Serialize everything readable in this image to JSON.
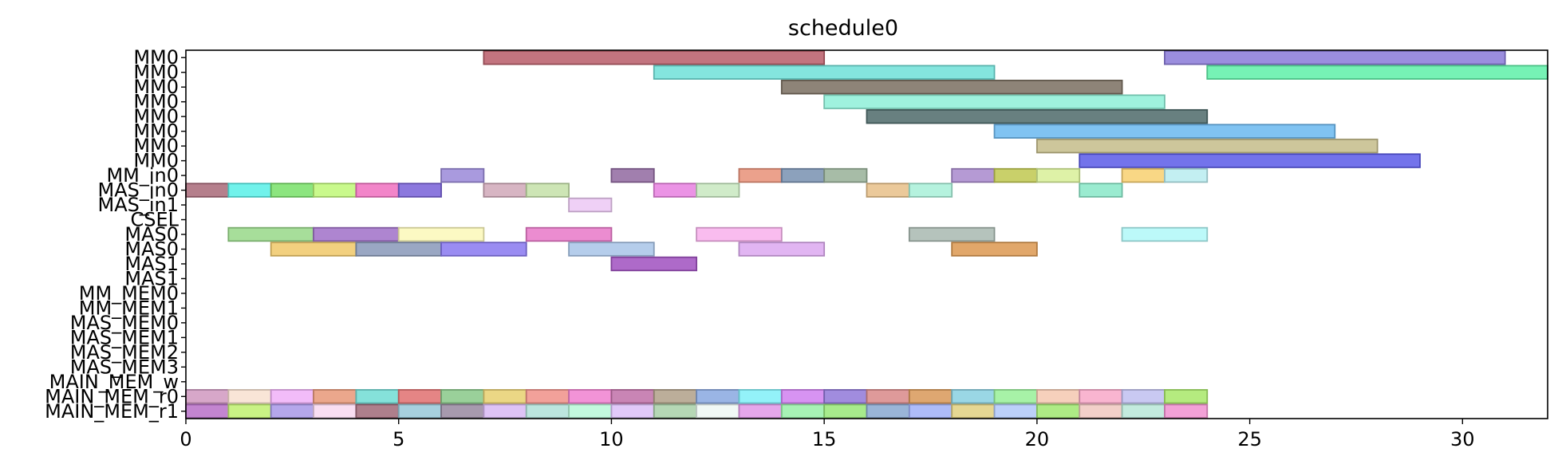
{
  "chart_data": {
    "type": "gantt",
    "title": "schedule0",
    "xlabel": "",
    "ylabel": "",
    "xlim": [
      0,
      32
    ],
    "xticks": [
      0,
      5,
      10,
      15,
      20,
      25,
      30
    ],
    "rows": [
      "MM0",
      "MM0",
      "MM0",
      "MM0",
      "MM0",
      "MM0",
      "MM0",
      "MM0",
      "MM_in0",
      "MAS_in0",
      "MAS_in1",
      "CSEL",
      "MAS0",
      "MAS0",
      "MAS1",
      "MAS1",
      "MM_MEM0",
      "MM_MEM1",
      "MAS_MEM0",
      "MAS_MEM1",
      "MAS_MEM2",
      "MAS_MEM3",
      "MAIN_MEM_w",
      "MAIN_MEM_r0",
      "MAIN_MEM_r1"
    ],
    "tasks": [
      {
        "row": 0,
        "start": 7,
        "end": 15,
        "color": "#b85c68"
      },
      {
        "row": 0,
        "start": 23,
        "end": 31,
        "color": "#8a7ad8"
      },
      {
        "row": 1,
        "start": 11,
        "end": 19,
        "color": "#6ee0d8"
      },
      {
        "row": 1,
        "start": 24,
        "end": 32,
        "color": "#5ef0a8"
      },
      {
        "row": 2,
        "start": 14,
        "end": 22,
        "color": "#7a6e60"
      },
      {
        "row": 3,
        "start": 15,
        "end": 23,
        "color": "#8ef0d8"
      },
      {
        "row": 4,
        "start": 16,
        "end": 24,
        "color": "#4e6a6a"
      },
      {
        "row": 5,
        "start": 19,
        "end": 27,
        "color": "#6ab8f0"
      },
      {
        "row": 6,
        "start": 20,
        "end": 28,
        "color": "#c4bc8a"
      },
      {
        "row": 7,
        "start": 21,
        "end": 29,
        "color": "#5a5ae8"
      },
      {
        "row": 8,
        "start": 6,
        "end": 7,
        "color": "#9a88d8"
      },
      {
        "row": 8,
        "start": 10,
        "end": 11,
        "color": "#9068a0"
      },
      {
        "row": 8,
        "start": 13,
        "end": 14,
        "color": "#e89078"
      },
      {
        "row": 8,
        "start": 14,
        "end": 15,
        "color": "#7890b0"
      },
      {
        "row": 8,
        "start": 15,
        "end": 16,
        "color": "#98b098"
      },
      {
        "row": 8,
        "start": 18,
        "end": 19,
        "color": "#a888cc"
      },
      {
        "row": 8,
        "start": 19,
        "end": 20,
        "color": "#c0c850"
      },
      {
        "row": 8,
        "start": 20,
        "end": 21,
        "color": "#d8f098"
      },
      {
        "row": 8,
        "start": 22,
        "end": 23,
        "color": "#f8d070"
      },
      {
        "row": 8,
        "start": 23,
        "end": 24,
        "color": "#b8ecf0"
      },
      {
        "row": 9,
        "start": 0,
        "end": 1,
        "color": "#a86878"
      },
      {
        "row": 9,
        "start": 1,
        "end": 2,
        "color": "#58f0e8"
      },
      {
        "row": 9,
        "start": 2,
        "end": 3,
        "color": "#78e068"
      },
      {
        "row": 9,
        "start": 3,
        "end": 4,
        "color": "#c0f878"
      },
      {
        "row": 9,
        "start": 4,
        "end": 5,
        "color": "#f070c0"
      },
      {
        "row": 9,
        "start": 5,
        "end": 6,
        "color": "#7860d8"
      },
      {
        "row": 9,
        "start": 7,
        "end": 8,
        "color": "#d0a8b8"
      },
      {
        "row": 9,
        "start": 8,
        "end": 9,
        "color": "#c4e0a8"
      },
      {
        "row": 9,
        "start": 11,
        "end": 12,
        "color": "#e880e0"
      },
      {
        "row": 9,
        "start": 12,
        "end": 13,
        "color": "#c8e8c0"
      },
      {
        "row": 9,
        "start": 16,
        "end": 17,
        "color": "#e8c088"
      },
      {
        "row": 9,
        "start": 17,
        "end": 18,
        "color": "#a8f0d8"
      },
      {
        "row": 9,
        "start": 21,
        "end": 22,
        "color": "#88e8c8"
      },
      {
        "row": 10,
        "start": 9,
        "end": 10,
        "color": "#ecc8f4"
      },
      {
        "row": 12,
        "start": 1,
        "end": 3,
        "color": "#98d888"
      },
      {
        "row": 12,
        "start": 3,
        "end": 5,
        "color": "#a070c8"
      },
      {
        "row": 12,
        "start": 5,
        "end": 7,
        "color": "#fcf8b8"
      },
      {
        "row": 12,
        "start": 8,
        "end": 10,
        "color": "#e878c8"
      },
      {
        "row": 12,
        "start": 12,
        "end": 14,
        "color": "#f8b0ec"
      },
      {
        "row": 12,
        "start": 17,
        "end": 19,
        "color": "#a8b8b0"
      },
      {
        "row": 12,
        "start": 22,
        "end": 24,
        "color": "#b0f8f8"
      },
      {
        "row": 13,
        "start": 2,
        "end": 4,
        "color": "#f0c868"
      },
      {
        "row": 13,
        "start": 4,
        "end": 6,
        "color": "#8898b8"
      },
      {
        "row": 13,
        "start": 6,
        "end": 8,
        "color": "#8878f0"
      },
      {
        "row": 13,
        "start": 9,
        "end": 11,
        "color": "#a8c4e8"
      },
      {
        "row": 13,
        "start": 13,
        "end": 15,
        "color": "#dca8f0"
      },
      {
        "row": 13,
        "start": 18,
        "end": 20,
        "color": "#dc9850"
      },
      {
        "row": 14,
        "start": 10,
        "end": 12,
        "color": "#a050c0"
      },
      {
        "row": 23,
        "start": 0,
        "end": 1,
        "color": "#d098c0"
      },
      {
        "row": 23,
        "start": 1,
        "end": 2,
        "color": "#f8e0d0"
      },
      {
        "row": 23,
        "start": 2,
        "end": 3,
        "color": "#f0b0f8"
      },
      {
        "row": 23,
        "start": 3,
        "end": 4,
        "color": "#e89878"
      },
      {
        "row": 23,
        "start": 4,
        "end": 5,
        "color": "#70dcd4"
      },
      {
        "row": 23,
        "start": 5,
        "end": 6,
        "color": "#e07070"
      },
      {
        "row": 23,
        "start": 6,
        "end": 7,
        "color": "#88c888"
      },
      {
        "row": 23,
        "start": 7,
        "end": 8,
        "color": "#e8d070"
      },
      {
        "row": 23,
        "start": 8,
        "end": 9,
        "color": "#f09088"
      },
      {
        "row": 23,
        "start": 9,
        "end": 10,
        "color": "#f080d0"
      },
      {
        "row": 23,
        "start": 10,
        "end": 11,
        "color": "#c070a8"
      },
      {
        "row": 23,
        "start": 11,
        "end": 12,
        "color": "#b0a088"
      },
      {
        "row": 23,
        "start": 12,
        "end": 13,
        "color": "#88a8e0"
      },
      {
        "row": 23,
        "start": 13,
        "end": 14,
        "color": "#80f0f8"
      },
      {
        "row": 23,
        "start": 14,
        "end": 15,
        "color": "#d080f0"
      },
      {
        "row": 23,
        "start": 15,
        "end": 16,
        "color": "#9078d8"
      },
      {
        "row": 23,
        "start": 16,
        "end": 17,
        "color": "#d88888"
      },
      {
        "row": 23,
        "start": 17,
        "end": 18,
        "color": "#d89858"
      },
      {
        "row": 23,
        "start": 18,
        "end": 19,
        "color": "#88d0e0"
      },
      {
        "row": 23,
        "start": 19,
        "end": 20,
        "color": "#98f098"
      },
      {
        "row": 23,
        "start": 20,
        "end": 21,
        "color": "#f4c8b0"
      },
      {
        "row": 23,
        "start": 21,
        "end": 22,
        "color": "#f8a8c8"
      },
      {
        "row": 23,
        "start": 22,
        "end": 23,
        "color": "#c0c0f0"
      },
      {
        "row": 23,
        "start": 23,
        "end": 24,
        "color": "#a8e868"
      },
      {
        "row": 24,
        "start": 0,
        "end": 1,
        "color": "#b870c8"
      },
      {
        "row": 24,
        "start": 1,
        "end": 2,
        "color": "#c0f070"
      },
      {
        "row": 24,
        "start": 2,
        "end": 3,
        "color": "#a898e8"
      },
      {
        "row": 24,
        "start": 3,
        "end": 4,
        "color": "#f8d8f0"
      },
      {
        "row": 24,
        "start": 4,
        "end": 5,
        "color": "#a06878"
      },
      {
        "row": 24,
        "start": 5,
        "end": 6,
        "color": "#98c8d8"
      },
      {
        "row": 24,
        "start": 6,
        "end": 7,
        "color": "#9888a0"
      },
      {
        "row": 24,
        "start": 7,
        "end": 8,
        "color": "#d8b8f4"
      },
      {
        "row": 24,
        "start": 8,
        "end": 9,
        "color": "#b0e0d8"
      },
      {
        "row": 24,
        "start": 9,
        "end": 10,
        "color": "#b8f8d8"
      },
      {
        "row": 24,
        "start": 10,
        "end": 11,
        "color": "#dcc0f8"
      },
      {
        "row": 24,
        "start": 11,
        "end": 12,
        "color": "#a8d0a8"
      },
      {
        "row": 24,
        "start": 12,
        "end": 13,
        "color": "#eef8f4"
      },
      {
        "row": 24,
        "start": 13,
        "end": 14,
        "color": "#e098e8"
      },
      {
        "row": 24,
        "start": 14,
        "end": 15,
        "color": "#98f0a8"
      },
      {
        "row": 24,
        "start": 15,
        "end": 16,
        "color": "#98e878"
      },
      {
        "row": 24,
        "start": 16,
        "end": 17,
        "color": "#88a8d0"
      },
      {
        "row": 24,
        "start": 17,
        "end": 18,
        "color": "#a0b0f8"
      },
      {
        "row": 24,
        "start": 18,
        "end": 19,
        "color": "#e0d080"
      },
      {
        "row": 24,
        "start": 19,
        "end": 20,
        "color": "#b0c8f8"
      },
      {
        "row": 24,
        "start": 20,
        "end": 21,
        "color": "#a0e870"
      },
      {
        "row": 24,
        "start": 21,
        "end": 22,
        "color": "#f0c8c0"
      },
      {
        "row": 24,
        "start": 22,
        "end": 23,
        "color": "#b8e8d8"
      },
      {
        "row": 24,
        "start": 23,
        "end": 24,
        "color": "#f090d0"
      }
    ],
    "grid": false,
    "legend": "none"
  }
}
